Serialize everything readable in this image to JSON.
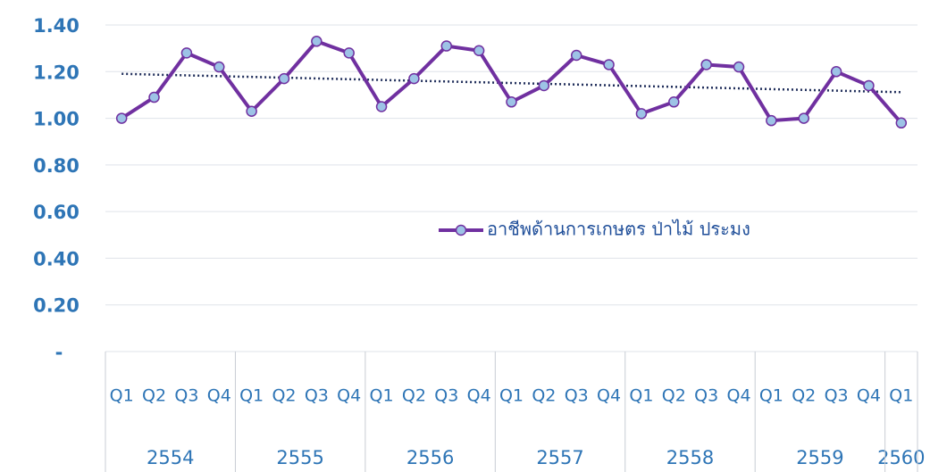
{
  "chart_data": {
    "type": "line",
    "categories": [
      "Q1",
      "Q2",
      "Q3",
      "Q4",
      "Q1",
      "Q2",
      "Q3",
      "Q4",
      "Q1",
      "Q2",
      "Q3",
      "Q4",
      "Q1",
      "Q2",
      "Q3",
      "Q4",
      "Q1",
      "Q2",
      "Q3",
      "Q4",
      "Q1",
      "Q2",
      "Q3",
      "Q4",
      "Q1"
    ],
    "category_groups": [
      "2554",
      "2555",
      "2556",
      "2557",
      "2558",
      "2559",
      "2560"
    ],
    "series": [
      {
        "name": "อาชีพด้านการเกษตร ป่าไม้ ประมง",
        "color": "#7030a0",
        "marker_color": "#9dc3e6",
        "values": [
          1.0,
          1.09,
          1.28,
          1.22,
          1.03,
          1.17,
          1.33,
          1.28,
          1.05,
          1.17,
          1.31,
          1.29,
          1.07,
          1.14,
          1.27,
          1.23,
          1.02,
          1.07,
          1.23,
          1.22,
          0.99,
          1.0,
          1.2,
          1.14,
          0.98
        ]
      }
    ],
    "trendline": {
      "type": "linear",
      "color": "#1f2d5a"
    },
    "ylim": [
      0,
      1.4
    ],
    "yticks": [
      {
        "value": 0,
        "label": "-"
      },
      {
        "value": 0.2,
        "label": "0.20"
      },
      {
        "value": 0.4,
        "label": "0.40"
      },
      {
        "value": 0.6,
        "label": "0.60"
      },
      {
        "value": 0.8,
        "label": "0.80"
      },
      {
        "value": 1.0,
        "label": "1.00"
      },
      {
        "value": 1.2,
        "label": "1.20"
      },
      {
        "value": 1.4,
        "label": "1.40"
      }
    ],
    "grid": true,
    "legend": "right"
  }
}
